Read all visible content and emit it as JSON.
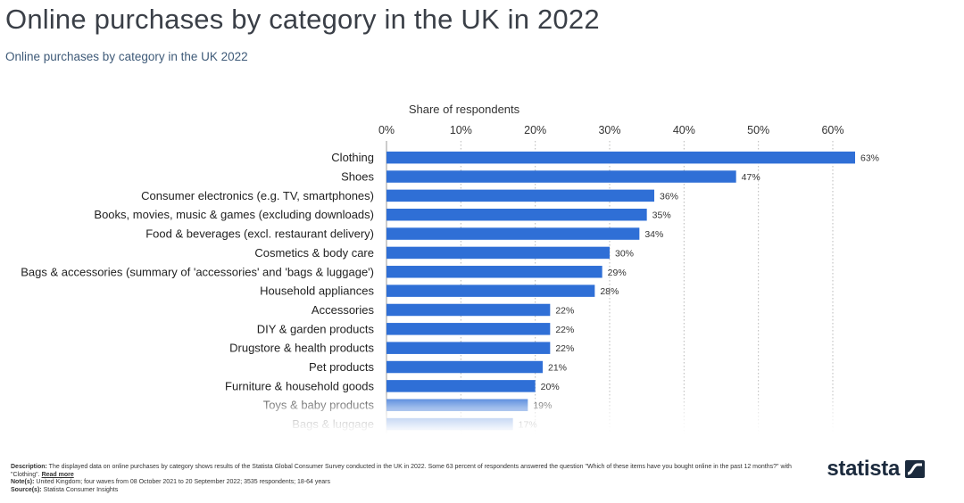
{
  "header": {
    "title": "Online purchases by category in the UK in 2022",
    "subtitle": "Online purchases by category in the UK 2022"
  },
  "chart_data": {
    "type": "bar",
    "orientation": "horizontal",
    "xlabel": "Share of respondents",
    "xlim": [
      0,
      63
    ],
    "ticks": [
      0,
      10,
      20,
      30,
      40,
      50,
      60
    ],
    "tick_labels": [
      "0%",
      "10%",
      "20%",
      "30%",
      "40%",
      "50%",
      "60%"
    ],
    "grid": true,
    "categories": [
      "Clothing",
      "Shoes",
      "Consumer electronics (e.g. TV, smartphones)",
      "Books, movies, music & games (excluding downloads)",
      "Food & beverages (excl. restaurant delivery)",
      "Cosmetics & body care",
      "Bags & accessories (summary of 'accessories' and 'bags & luggage')",
      "Household appliances",
      "Accessories",
      "DIY & garden products",
      "Drugstore & health products",
      "Pet products",
      "Furniture & household goods",
      "Toys & baby products",
      "Bags & luggage"
    ],
    "values": [
      63,
      47,
      36,
      35,
      34,
      30,
      29,
      28,
      22,
      22,
      22,
      21,
      20,
      19,
      17
    ],
    "value_labels": [
      "63%",
      "47%",
      "36%",
      "35%",
      "34%",
      "30%",
      "29%",
      "28%",
      "22%",
      "22%",
      "22%",
      "21%",
      "20%",
      "19%",
      "17%"
    ],
    "bar_color": "#2f6fd6"
  },
  "footer": {
    "description_label": "Description:",
    "description_text": "The displayed data on online purchases by category shows results of the Statista Global Consumer Survey conducted in the UK in 2022. Some 63 percent of respondents answered the question \"Which of these items have you bought online in the past 12 months?\" with \"Clothing\".",
    "read_more": "Read more",
    "notes_label": "Note(s):",
    "notes_text": "United Kingdom; four waves from 08 October 2021 to 20 September 2022; 3535 respondents; 18-64 years",
    "source_label": "Source(s):",
    "source_text": "Statista Consumer Insights"
  },
  "brand": {
    "name": "statista",
    "mark_color": "#1b2a3d"
  }
}
